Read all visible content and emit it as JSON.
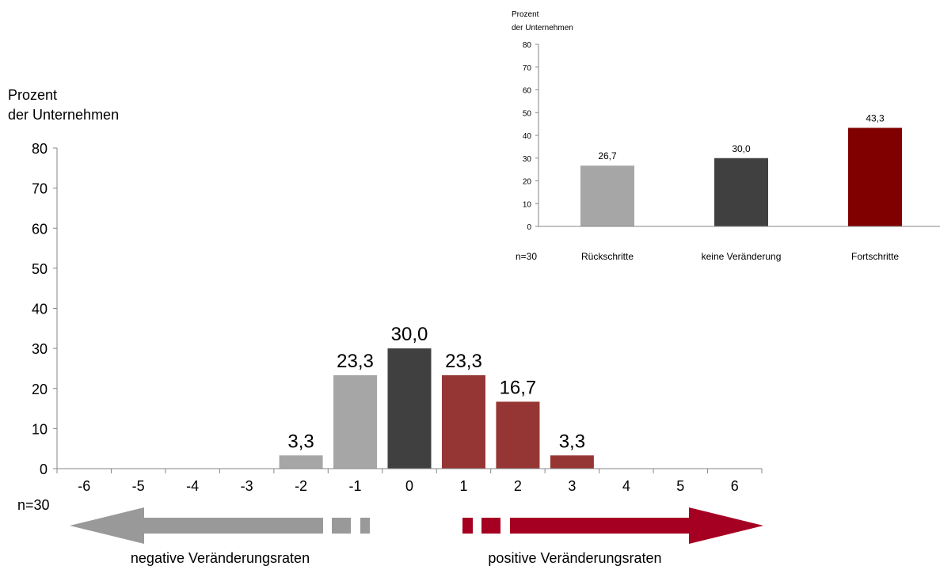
{
  "colors": {
    "negative": "#a6a6a6",
    "neutral": "#404040",
    "positive": "#963634",
    "inset_positive": "#800000",
    "arrow_negative": "#999999",
    "arrow_positive": "#a50021",
    "axis": "#868686"
  },
  "chart_data": [
    {
      "type": "bar",
      "ylabel_line1": "Prozent",
      "ylabel_line2": "der Unternehmen",
      "categories": [
        "-6",
        "-5",
        "-4",
        "-3",
        "-2",
        "-1",
        "0",
        "1",
        "2",
        "3",
        "4",
        "5",
        "6"
      ],
      "values": [
        0,
        0,
        0,
        0,
        3.3,
        23.3,
        30.0,
        23.3,
        16.7,
        3.3,
        0,
        0,
        0
      ],
      "data_labels": [
        "",
        "",
        "",
        "",
        "3,3",
        "23,3",
        "30,0",
        "23,3",
        "16,7",
        "3,3",
        "",
        "",
        ""
      ],
      "bar_color_groups": [
        "none",
        "none",
        "none",
        "none",
        "negative",
        "negative",
        "neutral",
        "positive",
        "positive",
        "positive",
        "none",
        "none",
        "none"
      ],
      "ylim": [
        0,
        80
      ],
      "yticks": [
        "0",
        "10",
        "20",
        "30",
        "40",
        "50",
        "60",
        "70",
        "80"
      ],
      "n_label": "n=30",
      "negative_label": "negative Veränderungsraten",
      "positive_label": "positive Veränderungsraten"
    },
    {
      "type": "bar",
      "ylabel_line1": "Prozent",
      "ylabel_line2": "der Unternehmen",
      "categories": [
        "Rückschritte",
        "keine Veränderung",
        "Fortschritte"
      ],
      "values": [
        26.7,
        30.0,
        43.3
      ],
      "data_labels": [
        "26,7",
        "30,0",
        "43,3"
      ],
      "bar_color_groups": [
        "negative",
        "neutral",
        "inset_positive"
      ],
      "ylim": [
        0,
        80
      ],
      "yticks": [
        "0",
        "10",
        "20",
        "30",
        "40",
        "50",
        "60",
        "70",
        "80"
      ],
      "n_label": "n=30"
    }
  ]
}
